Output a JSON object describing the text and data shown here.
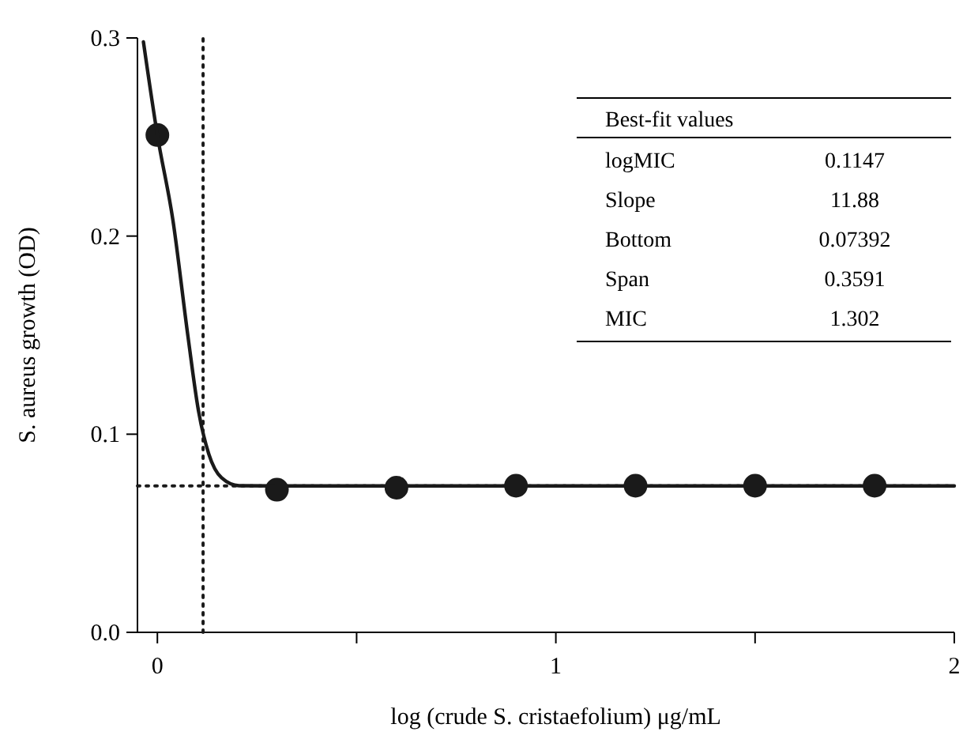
{
  "chart_data": {
    "type": "scatter",
    "xlabel": "log (crude S. cristaefolium) μg/mL",
    "ylabel": "S. aureus growth (OD)",
    "xlim": [
      -0.05,
      2
    ],
    "xticks": [
      0,
      {
        "value": 0.5,
        "label": null
      },
      1,
      {
        "value": 1.5,
        "label": null
      },
      2
    ],
    "ylim": [
      0,
      0.3
    ],
    "yticks": [
      {
        "value": 0,
        "label": "0.0"
      },
      0.1,
      0.2,
      0.3
    ],
    "grid": false,
    "marker": "circle",
    "series": [
      {
        "color": "#1a1a1a",
        "x": [
          0,
          0.3,
          0.6,
          0.9,
          1.2,
          1.5,
          1.8
        ],
        "values": [
          0.251,
          0.072,
          0.073,
          0.074,
          0.074,
          0.074,
          0.074
        ]
      },
      {
        "type": "line",
        "marker": "none",
        "color": "#1a1a1a",
        "line_style": "solid",
        "x": [
          -0.035,
          0,
          0.039,
          0.077,
          0.103,
          0.129,
          0.161,
          0.205,
          0.3,
          2
        ],
        "values": [
          0.298,
          0.251,
          0.208,
          0.149,
          0.112,
          0.09,
          0.078,
          0.074,
          0.0739,
          0.0739
        ]
      }
    ],
    "ref_lines": [
      {
        "axis": "x",
        "value": 0.1147,
        "line_style": "dotted",
        "color": "#1a1a1a"
      },
      {
        "axis": "y",
        "value": 0.0739,
        "line_style": "dotted",
        "color": "#1a1a1a"
      }
    ],
    "annotations": [
      "Best-fit values",
      "logMIC",
      "0.1147",
      "Slope",
      "11.88",
      "Bottom",
      "0.07392",
      "Span",
      "0.3591",
      "MIC",
      "1.302"
    ]
  }
}
